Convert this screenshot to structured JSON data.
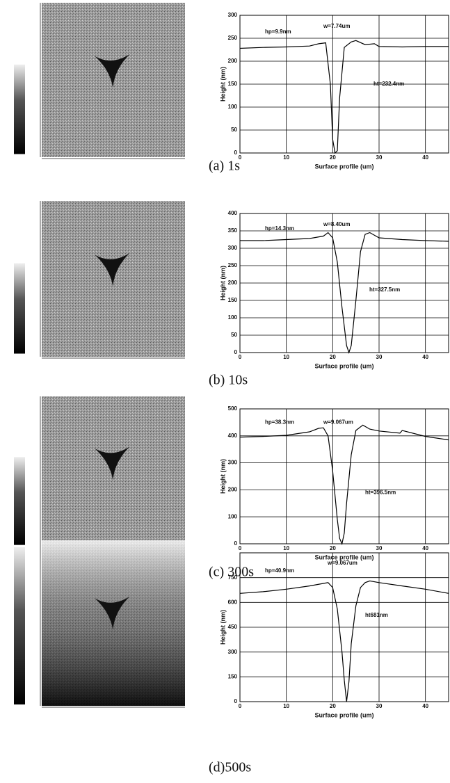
{
  "chart_data": [
    {
      "type": "line",
      "caption": "(a) 1s",
      "x_label": "Surface profile (um)",
      "y_label": "Height (nm)",
      "annotations": [
        "hp=9.9nm",
        "w=7.74um",
        "ht=232.4nm"
      ],
      "xlim": [
        0,
        45
      ],
      "xticks": [
        0,
        10,
        20,
        30,
        40
      ],
      "ylim": [
        0,
        300
      ],
      "yticks": [
        0,
        50,
        100,
        150,
        200,
        250,
        300
      ],
      "grid": true,
      "series": [
        {
          "color": "#000000",
          "x": [
            0,
            5,
            10,
            15,
            17,
            18.5,
            19.5,
            20,
            20.5,
            21,
            21.5,
            22.5,
            24,
            25,
            27,
            29,
            30,
            35,
            40,
            45
          ],
          "values": [
            228,
            230,
            231,
            233,
            238,
            240,
            150,
            30,
            0,
            5,
            120,
            230,
            242,
            245,
            236,
            238,
            232,
            231,
            232,
            232
          ]
        }
      ]
    },
    {
      "type": "line",
      "caption": "(b) 10s",
      "x_label": "Surface profile (um)",
      "y_label": "Height (nm)",
      "annotations": [
        "hp=14.3nm",
        "w=8.40um",
        "ht=327.5nm"
      ],
      "xlim": [
        0,
        45
      ],
      "xticks": [
        0,
        10,
        20,
        30,
        40
      ],
      "ylim": [
        0,
        400
      ],
      "yticks": [
        0,
        50,
        100,
        150,
        200,
        250,
        300,
        350,
        400
      ],
      "grid": true,
      "series": [
        {
          "color": "#000000",
          "x": [
            0,
            5,
            10,
            15,
            18,
            19,
            20,
            21,
            22,
            23,
            23.5,
            24,
            25,
            26,
            27,
            28,
            30,
            35,
            40,
            45
          ],
          "values": [
            322,
            322,
            325,
            328,
            335,
            345,
            330,
            260,
            130,
            20,
            0,
            20,
            150,
            290,
            340,
            345,
            330,
            325,
            322,
            320
          ]
        }
      ]
    },
    {
      "type": "line",
      "caption": "(c) 300s",
      "x_label": "Surface profile (um)",
      "y_label": "Height (nm)",
      "annotations": [
        "hp=38.3nm",
        "w=9.067um",
        "ht=396.5nm"
      ],
      "xlim": [
        0,
        45
      ],
      "xticks": [
        0,
        10,
        20,
        30,
        40
      ],
      "ylim": [
        0,
        500
      ],
      "yticks": [
        0,
        100,
        200,
        300,
        400,
        500
      ],
      "grid": true,
      "series": [
        {
          "color": "#000000",
          "x": [
            0,
            5,
            10,
            15,
            17,
            18,
            19,
            20,
            21,
            21.5,
            22,
            22.5,
            23,
            24,
            25,
            26.5,
            28,
            30,
            34.5,
            35,
            40,
            45
          ],
          "values": [
            395,
            398,
            402,
            415,
            428,
            430,
            400,
            270,
            90,
            20,
            0,
            40,
            150,
            330,
            420,
            440,
            425,
            418,
            410,
            420,
            398,
            385
          ]
        }
      ]
    },
    {
      "type": "line",
      "caption": "(d)500s",
      "x_label": "Surface profile (um)",
      "y_label": "Height (nm)",
      "annotations": [
        "hp=40.9nm",
        "w=9.067um",
        "ht681nm"
      ],
      "xlim": [
        0,
        45
      ],
      "xticks": [
        0,
        10,
        20,
        30,
        40
      ],
      "ylim": [
        0,
        900
      ],
      "yticks": [
        0,
        150,
        300,
        450,
        600,
        750
      ],
      "grid": true,
      "series": [
        {
          "color": "#000000",
          "x": [
            0,
            5,
            10,
            15,
            18,
            19,
            20,
            21,
            22,
            22.5,
            23,
            23.5,
            24,
            25,
            26,
            27,
            28,
            30,
            35,
            40,
            45
          ],
          "values": [
            655,
            665,
            680,
            700,
            715,
            720,
            690,
            560,
            300,
            130,
            0,
            120,
            350,
            580,
            690,
            720,
            730,
            720,
            700,
            680,
            655
          ]
        }
      ]
    }
  ]
}
